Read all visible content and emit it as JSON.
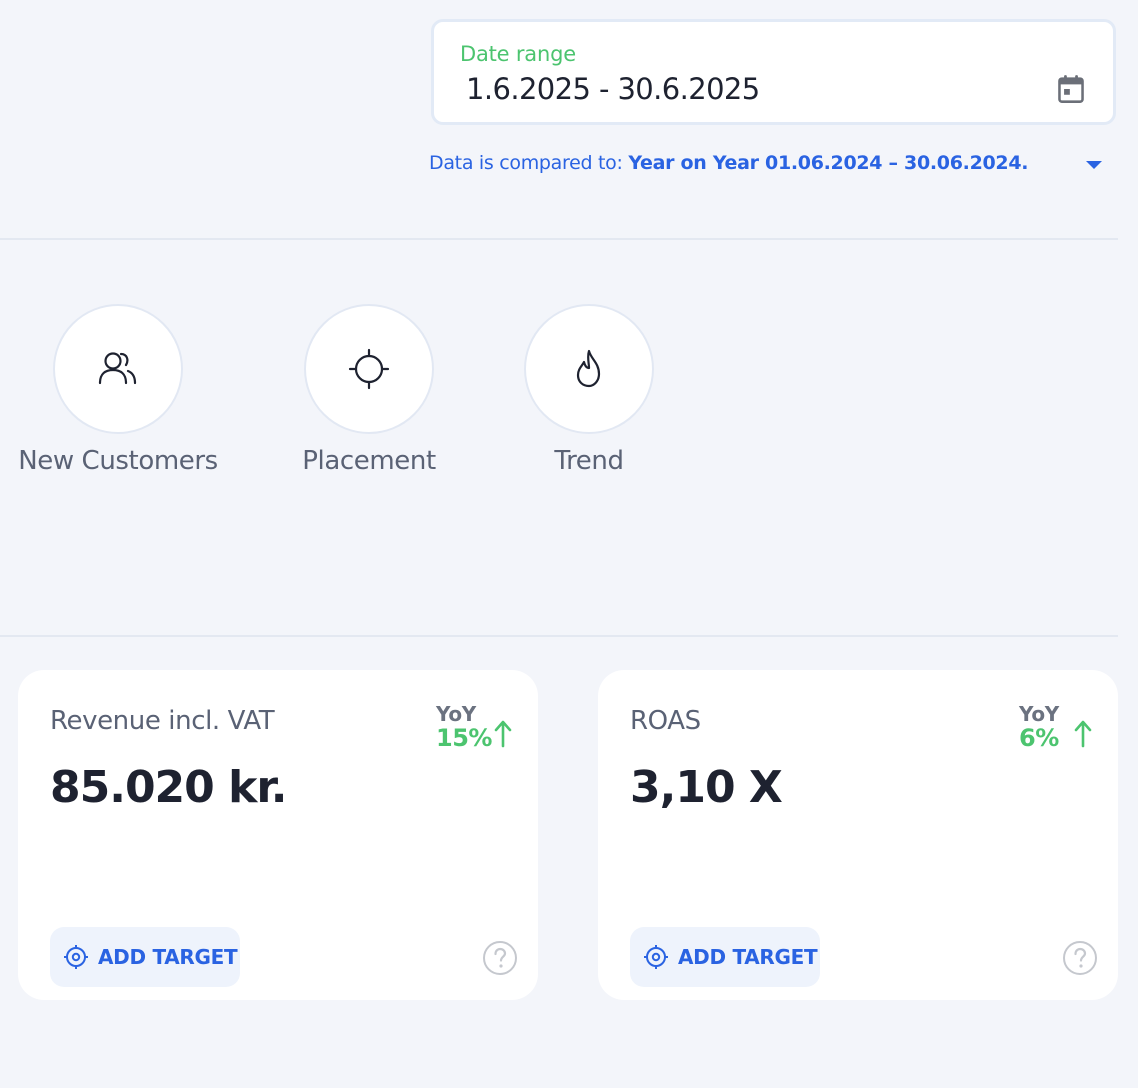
{
  "date_range": {
    "label": "Date range",
    "value": "1.6.2025 - 30.6.2025",
    "icon": "calendar-icon"
  },
  "comparison": {
    "prefix": "Data is compared to: ",
    "value": "Year on Year 01.06.2024 – 30.06.2024.",
    "icon": "caret-down-icon"
  },
  "nav": [
    {
      "label": "New Customers",
      "icon": "users-icon"
    },
    {
      "label": "Placement",
      "icon": "crosshair-icon"
    },
    {
      "label": "Trend",
      "icon": "flame-icon"
    }
  ],
  "cards": [
    {
      "title": "Revenue incl. VAT",
      "value": "85.020 kr.",
      "yoy_label": "YoY",
      "yoy_value": "15%",
      "trend": "up",
      "action_label": "ADD TARGET"
    },
    {
      "title": "ROAS",
      "value": "3,10 X",
      "yoy_label": "YoY",
      "yoy_value": "6%",
      "trend": "up",
      "action_label": "ADD TARGET"
    }
  ],
  "colors": {
    "accent_blue": "#2a63e2",
    "positive_green": "#4cc46f",
    "background": "#f3f5fa"
  }
}
